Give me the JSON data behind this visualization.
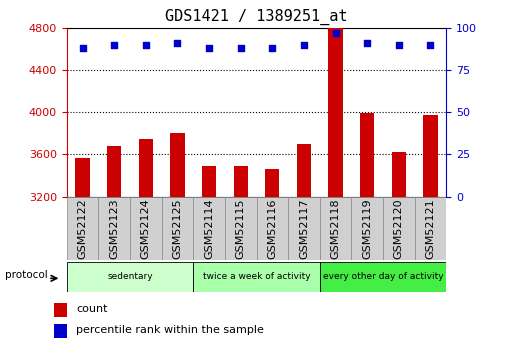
{
  "title": "GDS1421 / 1389251_at",
  "samples": [
    "GSM52122",
    "GSM52123",
    "GSM52124",
    "GSM52125",
    "GSM52114",
    "GSM52115",
    "GSM52116",
    "GSM52117",
    "GSM52118",
    "GSM52119",
    "GSM52120",
    "GSM52121"
  ],
  "counts": [
    3570,
    3680,
    3750,
    3800,
    3490,
    3490,
    3460,
    3700,
    4800,
    3990,
    3620,
    3970
  ],
  "percentile_ranks": [
    88,
    90,
    90,
    91,
    88,
    88,
    88,
    90,
    97,
    91,
    90,
    90
  ],
  "ylim_left": [
    3200,
    4800
  ],
  "ylim_right": [
    0,
    100
  ],
  "yticks_left": [
    3200,
    3600,
    4000,
    4400,
    4800
  ],
  "yticks_right": [
    0,
    25,
    50,
    75,
    100
  ],
  "bar_color": "#cc0000",
  "dot_color": "#0000cc",
  "groups": [
    {
      "label": "sedentary",
      "start": 0,
      "end": 4,
      "color": "#ccffcc"
    },
    {
      "label": "twice a week of activity",
      "start": 4,
      "end": 8,
      "color": "#aaffaa"
    },
    {
      "label": "every other day of activity",
      "start": 8,
      "end": 12,
      "color": "#44ee44"
    }
  ],
  "protocol_label": "protocol",
  "legend_count_label": "count",
  "legend_pct_label": "percentile rank within the sample",
  "bar_color_legend": "#cc0000",
  "dot_color_legend": "#0000cc",
  "tick_label_color_left": "#cc0000",
  "tick_label_color_right": "#0000cc",
  "title_fontsize": 11,
  "tick_fontsize": 8,
  "label_fontsize": 8,
  "xticklabel_bg": "#d0d0d0",
  "xticklabel_border": "#888888"
}
